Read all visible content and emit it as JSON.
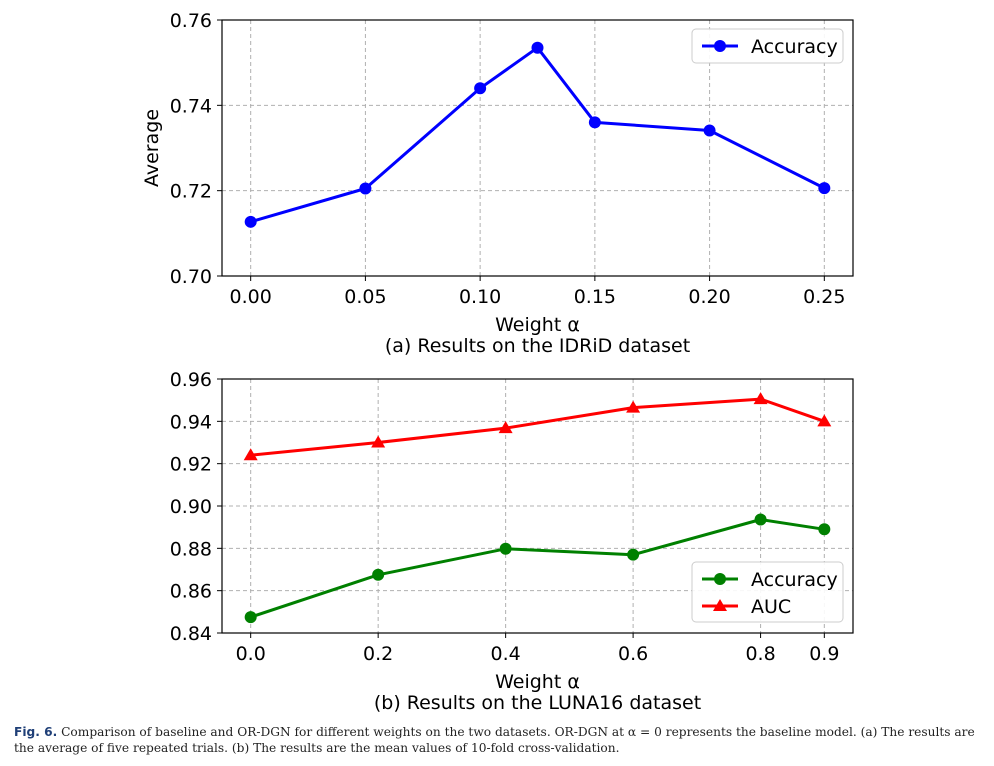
{
  "chart_data": [
    {
      "type": "line",
      "id": "a",
      "xlabel": "Weight α",
      "ylabel": "Average",
      "caption": "(a) Results on the IDRiD dataset",
      "xlim": [
        -0.0125,
        0.2625
      ],
      "ylim": [
        0.7,
        0.76
      ],
      "xticks": [
        0.0,
        0.05,
        0.1,
        0.15,
        0.2,
        0.25
      ],
      "xtick_labels": [
        "0.00",
        "0.05",
        "0.10",
        "0.15",
        "0.20",
        "0.25"
      ],
      "yticks": [
        0.7,
        0.72,
        0.74,
        0.76
      ],
      "ytick_labels": [
        "0.70",
        "0.72",
        "0.74",
        "0.76"
      ],
      "grid": true,
      "legend_position": "top-right",
      "series": [
        {
          "name": "Accuracy",
          "color": "#0000ff",
          "marker": "circle",
          "x": [
            0.0,
            0.05,
            0.1,
            0.125,
            0.15,
            0.2,
            0.25
          ],
          "values": [
            0.7127,
            0.7205,
            0.744,
            0.7535,
            0.736,
            0.7341,
            0.7206
          ]
        }
      ]
    },
    {
      "type": "line",
      "id": "b",
      "xlabel": "Weight α",
      "ylabel": "",
      "caption": "(b) Results on the LUNA16 dataset",
      "xlim": [
        -0.045,
        0.945
      ],
      "ylim": [
        0.84,
        0.96
      ],
      "xticks": [
        0.0,
        0.2,
        0.4,
        0.6,
        0.8,
        0.9
      ],
      "xtick_labels": [
        "0.0",
        "0.2",
        "0.4",
        "0.6",
        "0.8",
        "0.9"
      ],
      "yticks": [
        0.84,
        0.86,
        0.88,
        0.9,
        0.92,
        0.94,
        0.96
      ],
      "ytick_labels": [
        "0.84",
        "0.86",
        "0.88",
        "0.90",
        "0.92",
        "0.94",
        "0.96"
      ],
      "grid": true,
      "legend_position": "lower-right",
      "series": [
        {
          "name": "Accuracy",
          "color": "#008000",
          "marker": "circle",
          "x": [
            0.0,
            0.2,
            0.4,
            0.6,
            0.8,
            0.9
          ],
          "values": [
            0.8475,
            0.8675,
            0.8798,
            0.877,
            0.8936,
            0.889
          ]
        },
        {
          "name": "AUC",
          "color": "#ff0000",
          "marker": "triangle",
          "x": [
            0.0,
            0.2,
            0.4,
            0.6,
            0.8,
            0.9
          ],
          "values": [
            0.924,
            0.93,
            0.9368,
            0.9465,
            0.9505,
            0.94
          ]
        }
      ]
    }
  ],
  "figure_caption": {
    "label": "Fig. 6.",
    "text": "Comparison of baseline and OR-DGN for different weights on the two datasets. OR-DGN at α = 0 represents the baseline model. (a) The results are the average of five repeated trials. (b) The results are the mean values of 10-fold cross-validation."
  }
}
